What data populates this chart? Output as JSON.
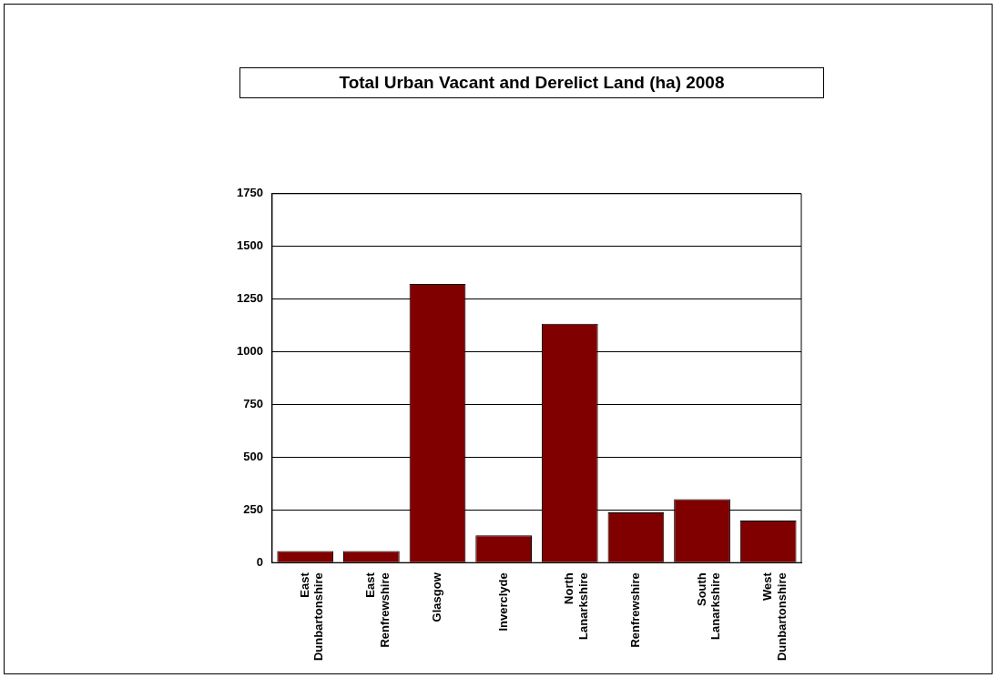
{
  "chart_data": {
    "type": "bar",
    "title": "Total Urban Vacant and Derelict Land (ha) 2008",
    "categories": [
      "East Dunbartonshire",
      "East Renfrewshire",
      "Glasgow",
      "Inverclyde",
      "North Lanarkshire",
      "Renfrewshire",
      "South Lanarkshire",
      "West Dunbartonshire"
    ],
    "values": [
      55,
      55,
      1322,
      129,
      1133,
      238,
      301,
      199
    ],
    "color": "#800000",
    "ylim": [
      0,
      1750
    ],
    "yticks": [
      0,
      250,
      500,
      750,
      1000,
      1250,
      1500,
      1750
    ],
    "grid": "y",
    "legend": false
  }
}
